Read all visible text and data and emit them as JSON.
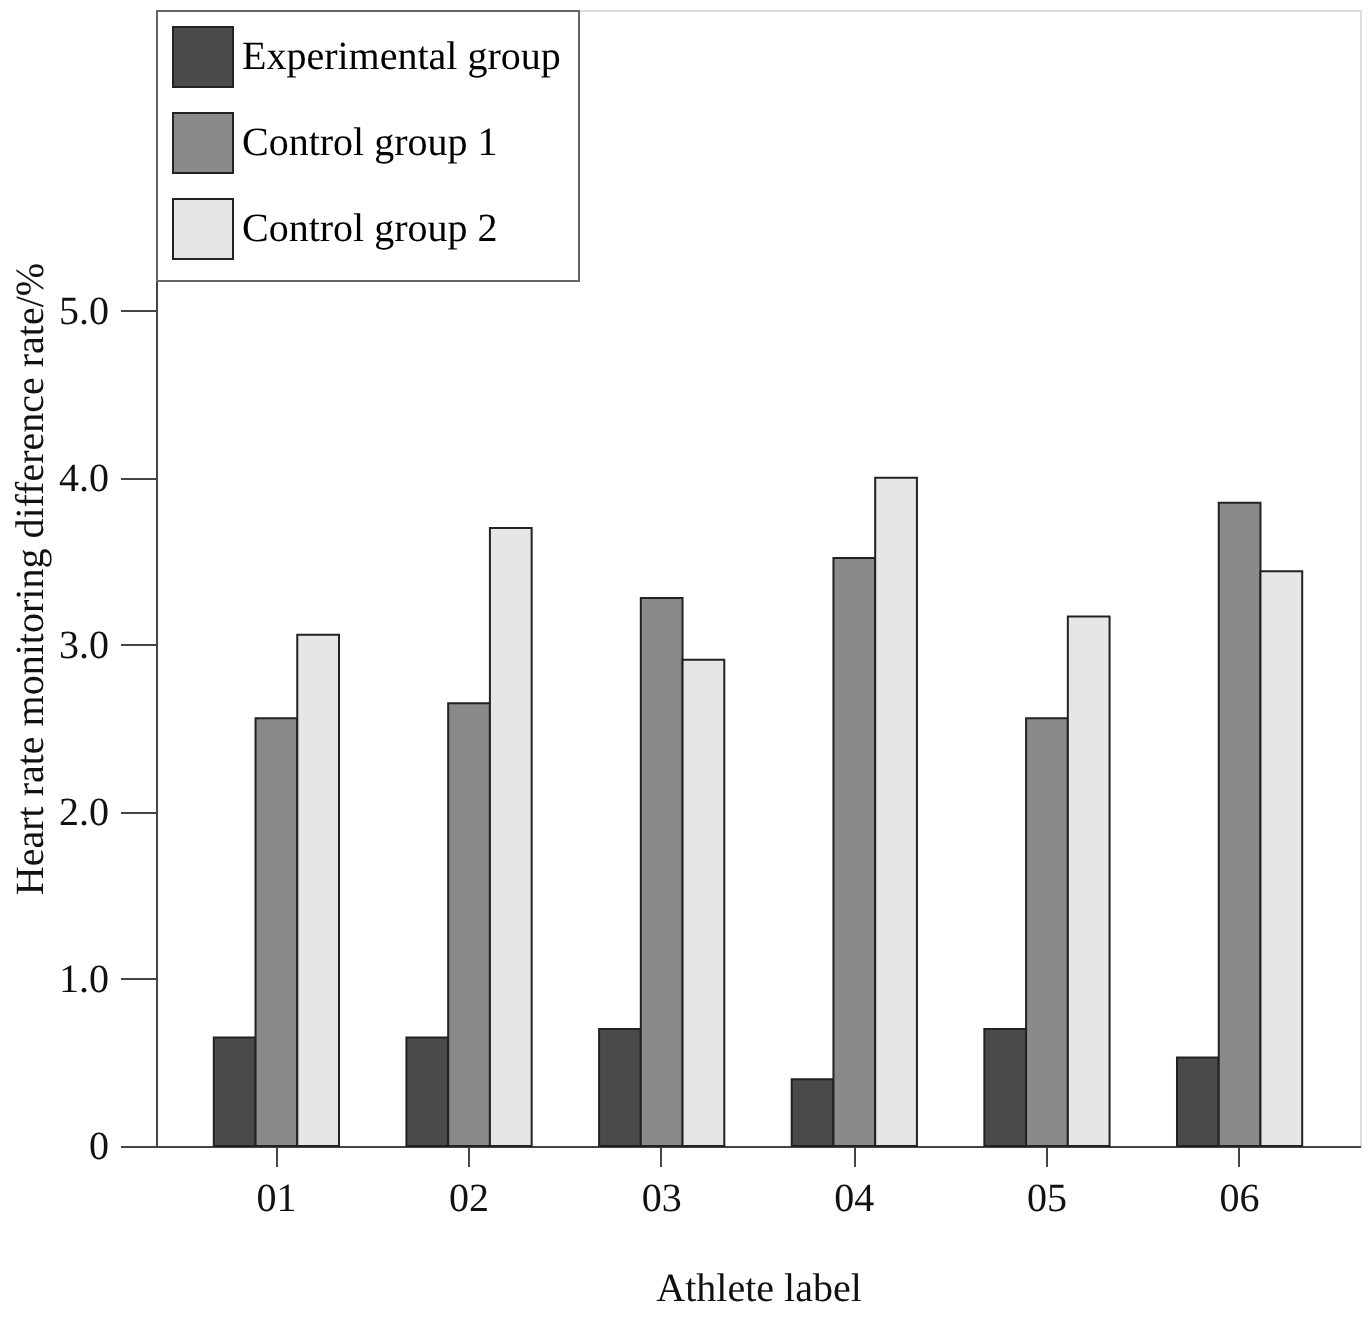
{
  "chart_data": {
    "type": "bar",
    "xlabel": "Athlete label",
    "ylabel": "Heart rate monitoring difference rate/%",
    "categories": [
      "01",
      "02",
      "03",
      "04",
      "05",
      "06"
    ],
    "series": [
      {
        "name": "Experimental group",
        "color": "#4a4a4a",
        "values": [
          0.65,
          0.65,
          0.7,
          0.4,
          0.7,
          0.53
        ]
      },
      {
        "name": "Control group 1",
        "color": "#8a8a8a",
        "values": [
          2.56,
          2.65,
          3.28,
          3.52,
          2.56,
          3.85
        ]
      },
      {
        "name": "Control group 2",
        "color": "#e6e6e6",
        "values": [
          3.06,
          3.7,
          2.91,
          4.0,
          3.17,
          3.44
        ]
      }
    ],
    "ylim": [
      0,
      6.8
    ],
    "yticks": [
      0,
      {
        "value": 1,
        "label": "1.0"
      },
      {
        "value": 2,
        "label": "2.0"
      },
      {
        "value": 3,
        "label": "3.0"
      },
      {
        "value": 4,
        "label": "4.0"
      },
      {
        "value": 5,
        "label": "5.0"
      }
    ],
    "grid": false,
    "legend": "top left"
  }
}
